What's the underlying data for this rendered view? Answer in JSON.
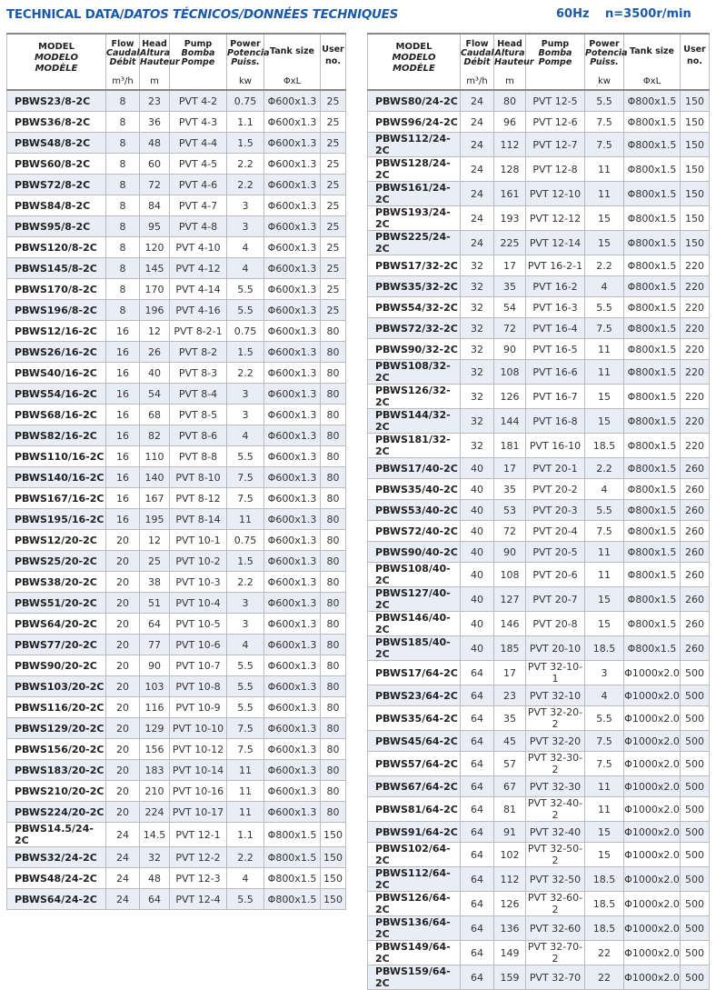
{
  "header": {
    "title_en": "TECHNICAL DATA/",
    "title_es_fr": "DATOS TÉCNICOS/DONNÉES TECHNIQUES",
    "frequency": "60Hz",
    "speed": "n=3500r/min"
  },
  "columns": {
    "model": [
      "MODEL",
      "MODELO",
      "MODÈLE"
    ],
    "flow": [
      "Flow",
      "Caudal",
      "Débit"
    ],
    "flow_unit": "m³/h",
    "head": [
      "Head",
      "Altura",
      "Hauteur"
    ],
    "head_unit": "m",
    "pump": [
      "Pump",
      "Bomba",
      "Pompe"
    ],
    "power": [
      "Power",
      "Potencia",
      "Puiss."
    ],
    "power_unit": "kw",
    "tank": "Tank size",
    "tank_unit": "ΦxL",
    "user": [
      "User",
      "no."
    ]
  },
  "left_table": [
    [
      "PBWS23/8-2C",
      "8",
      "23",
      "PVT 4-2",
      "0.75",
      "Φ600x1.3",
      "25"
    ],
    [
      "PBWS36/8-2C",
      "8",
      "36",
      "PVT 4-3",
      "1.1",
      "Φ600x1.3",
      "25"
    ],
    [
      "PBWS48/8-2C",
      "8",
      "48",
      "PVT 4-4",
      "1.5",
      "Φ600x1.3",
      "25"
    ],
    [
      "PBWS60/8-2C",
      "8",
      "60",
      "PVT 4-5",
      "2.2",
      "Φ600x1.3",
      "25"
    ],
    [
      "PBWS72/8-2C",
      "8",
      "72",
      "PVT 4-6",
      "2.2",
      "Φ600x1.3",
      "25"
    ],
    [
      "PBWS84/8-2C",
      "8",
      "84",
      "PVT 4-7",
      "3",
      "Φ600x1.3",
      "25"
    ],
    [
      "PBWS95/8-2C",
      "8",
      "95",
      "PVT 4-8",
      "3",
      "Φ600x1.3",
      "25"
    ],
    [
      "PBWS120/8-2C",
      "8",
      "120",
      "PVT 4-10",
      "4",
      "Φ600x1.3",
      "25"
    ],
    [
      "PBWS145/8-2C",
      "8",
      "145",
      "PVT 4-12",
      "4",
      "Φ600x1.3",
      "25"
    ],
    [
      "PBWS170/8-2C",
      "8",
      "170",
      "PVT 4-14",
      "5.5",
      "Φ600x1.3",
      "25"
    ],
    [
      "PBWS196/8-2C",
      "8",
      "196",
      "PVT 4-16",
      "5.5",
      "Φ600x1.3",
      "25"
    ],
    [
      "PBWS12/16-2C",
      "16",
      "12",
      "PVT 8-2-1",
      "0.75",
      "Φ600x1.3",
      "80"
    ],
    [
      "PBWS26/16-2C",
      "16",
      "26",
      "PVT 8-2",
      "1.5",
      "Φ600x1.3",
      "80"
    ],
    [
      "PBWS40/16-2C",
      "16",
      "40",
      "PVT 8-3",
      "2.2",
      "Φ600x1.3",
      "80"
    ],
    [
      "PBWS54/16-2C",
      "16",
      "54",
      "PVT 8-4",
      "3",
      "Φ600x1.3",
      "80"
    ],
    [
      "PBWS68/16-2C",
      "16",
      "68",
      "PVT 8-5",
      "3",
      "Φ600x1.3",
      "80"
    ],
    [
      "PBWS82/16-2C",
      "16",
      "82",
      "PVT 8-6",
      "4",
      "Φ600x1.3",
      "80"
    ],
    [
      "PBWS110/16-2C",
      "16",
      "110",
      "PVT 8-8",
      "5.5",
      "Φ600x1.3",
      "80"
    ],
    [
      "PBWS140/16-2C",
      "16",
      "140",
      "PVT 8-10",
      "7.5",
      "Φ600x1.3",
      "80"
    ],
    [
      "PBWS167/16-2C",
      "16",
      "167",
      "PVT 8-12",
      "7.5",
      "Φ600x1.3",
      "80"
    ],
    [
      "PBWS195/16-2C",
      "16",
      "195",
      "PVT 8-14",
      "11",
      "Φ600x1.3",
      "80"
    ],
    [
      "PBWS12/20-2C",
      "20",
      "12",
      "PVT 10-1",
      "0.75",
      "Φ600x1.3",
      "80"
    ],
    [
      "PBWS25/20-2C",
      "20",
      "25",
      "PVT 10-2",
      "1.5",
      "Φ600x1.3",
      "80"
    ],
    [
      "PBWS38/20-2C",
      "20",
      "38",
      "PVT 10-3",
      "2.2",
      "Φ600x1.3",
      "80"
    ],
    [
      "PBWS51/20-2C",
      "20",
      "51",
      "PVT 10-4",
      "3",
      "Φ600x1.3",
      "80"
    ],
    [
      "PBWS64/20-2C",
      "20",
      "64",
      "PVT 10-5",
      "3",
      "Φ600x1.3",
      "80"
    ],
    [
      "PBWS77/20-2C",
      "20",
      "77",
      "PVT 10-6",
      "4",
      "Φ600x1.3",
      "80"
    ],
    [
      "PBWS90/20-2C",
      "20",
      "90",
      "PVT 10-7",
      "5.5",
      "Φ600x1.3",
      "80"
    ],
    [
      "PBWS103/20-2C",
      "20",
      "103",
      "PVT 10-8",
      "5.5",
      "Φ600x1.3",
      "80"
    ],
    [
      "PBWS116/20-2C",
      "20",
      "116",
      "PVT 10-9",
      "5.5",
      "Φ600x1.3",
      "80"
    ],
    [
      "PBWS129/20-2C",
      "20",
      "129",
      "PVT 10-10",
      "7.5",
      "Φ600x1.3",
      "80"
    ],
    [
      "PBWS156/20-2C",
      "20",
      "156",
      "PVT 10-12",
      "7.5",
      "Φ600x1.3",
      "80"
    ],
    [
      "PBWS183/20-2C",
      "20",
      "183",
      "PVT 10-14",
      "11",
      "Φ600x1.3",
      "80"
    ],
    [
      "PBWS210/20-2C",
      "20",
      "210",
      "PVT 10-16",
      "11",
      "Φ600x1.3",
      "80"
    ],
    [
      "PBWS224/20-2C",
      "20",
      "224",
      "PVT 10-17",
      "11",
      "Φ600x1.3",
      "80"
    ],
    [
      "PBWS14.5/24-2C",
      "24",
      "14.5",
      "PVT 12-1",
      "1.1",
      "Φ800x1.5",
      "150"
    ],
    [
      "PBWS32/24-2C",
      "24",
      "32",
      "PVT 12-2",
      "2.2",
      "Φ800x1.5",
      "150"
    ],
    [
      "PBWS48/24-2C",
      "24",
      "48",
      "PVT 12-3",
      "4",
      "Φ800x1.5",
      "150"
    ],
    [
      "PBWS64/24-2C",
      "24",
      "64",
      "PVT 12-4",
      "5.5",
      "Φ800x1.5",
      "150"
    ]
  ],
  "right_table": [
    [
      "PBWS80/24-2C",
      "24",
      "80",
      "PVT 12-5",
      "5.5",
      "Φ800x1.5",
      "150"
    ],
    [
      "PBWS96/24-2C",
      "24",
      "96",
      "PVT 12-6",
      "7.5",
      "Φ800x1.5",
      "150"
    ],
    [
      "PBWS112/24-2C",
      "24",
      "112",
      "PVT 12-7",
      "7.5",
      "Φ800x1.5",
      "150"
    ],
    [
      "PBWS128/24-2C",
      "24",
      "128",
      "PVT 12-8",
      "11",
      "Φ800x1.5",
      "150"
    ],
    [
      "PBWS161/24-2C",
      "24",
      "161",
      "PVT 12-10",
      "11",
      "Φ800x1.5",
      "150"
    ],
    [
      "PBWS193/24-2C",
      "24",
      "193",
      "PVT 12-12",
      "15",
      "Φ800x1.5",
      "150"
    ],
    [
      "PBWS225/24-2C",
      "24",
      "225",
      "PVT 12-14",
      "15",
      "Φ800x1.5",
      "150"
    ],
    [
      "PBWS17/32-2C",
      "32",
      "17",
      "PVT 16-2-1",
      "2.2",
      "Φ800x1.5",
      "220"
    ],
    [
      "PBWS35/32-2C",
      "32",
      "35",
      "PVT 16-2",
      "4",
      "Φ800x1.5",
      "220"
    ],
    [
      "PBWS54/32-2C",
      "32",
      "54",
      "PVT 16-3",
      "5.5",
      "Φ800x1.5",
      "220"
    ],
    [
      "PBWS72/32-2C",
      "32",
      "72",
      "PVT 16-4",
      "7.5",
      "Φ800x1.5",
      "220"
    ],
    [
      "PBWS90/32-2C",
      "32",
      "90",
      "PVT 16-5",
      "11",
      "Φ800x1.5",
      "220"
    ],
    [
      "PBWS108/32-2C",
      "32",
      "108",
      "PVT 16-6",
      "11",
      "Φ800x1.5",
      "220"
    ],
    [
      "PBWS126/32-2C",
      "32",
      "126",
      "PVT 16-7",
      "15",
      "Φ800x1.5",
      "220"
    ],
    [
      "PBWS144/32-2C",
      "32",
      "144",
      "PVT 16-8",
      "15",
      "Φ800x1.5",
      "220"
    ],
    [
      "PBWS181/32-2C",
      "32",
      "181",
      "PVT 16-10",
      "18.5",
      "Φ800x1.5",
      "220"
    ],
    [
      "PBWS17/40-2C",
      "40",
      "17",
      "PVT 20-1",
      "2.2",
      "Φ800x1.5",
      "260"
    ],
    [
      "PBWS35/40-2C",
      "40",
      "35",
      "PVT 20-2",
      "4",
      "Φ800x1.5",
      "260"
    ],
    [
      "PBWS53/40-2C",
      "40",
      "53",
      "PVT 20-3",
      "5.5",
      "Φ800x1.5",
      "260"
    ],
    [
      "PBWS72/40-2C",
      "40",
      "72",
      "PVT 20-4",
      "7.5",
      "Φ800x1.5",
      "260"
    ],
    [
      "PBWS90/40-2C",
      "40",
      "90",
      "PVT 20-5",
      "11",
      "Φ800x1.5",
      "260"
    ],
    [
      "PBWS108/40-2C",
      "40",
      "108",
      "PVT 20-6",
      "11",
      "Φ800x1.5",
      "260"
    ],
    [
      "PBWS127/40-2C",
      "40",
      "127",
      "PVT 20-7",
      "15",
      "Φ800x1.5",
      "260"
    ],
    [
      "PBWS146/40-2C",
      "40",
      "146",
      "PVT 20-8",
      "15",
      "Φ800x1.5",
      "260"
    ],
    [
      "PBWS185/40-2C",
      "40",
      "185",
      "PVT 20-10",
      "18.5",
      "Φ800x1.5",
      "260"
    ],
    [
      "PBWS17/64-2C",
      "64",
      "17",
      "PVT 32-10-1",
      "3",
      "Φ1000x2.0",
      "500"
    ],
    [
      "PBWS23/64-2C",
      "64",
      "23",
      "PVT 32-10",
      "4",
      "Φ1000x2.0",
      "500"
    ],
    [
      "PBWS35/64-2C",
      "64",
      "35",
      "PVT 32-20-2",
      "5.5",
      "Φ1000x2.0",
      "500"
    ],
    [
      "PBWS45/64-2C",
      "64",
      "45",
      "PVT 32-20",
      "7.5",
      "Φ1000x2.0",
      "500"
    ],
    [
      "PBWS57/64-2C",
      "64",
      "57",
      "PVT 32-30-2",
      "7.5",
      "Φ1000x2.0",
      "500"
    ],
    [
      "PBWS67/64-2C",
      "64",
      "67",
      "PVT 32-30",
      "11",
      "Φ1000x2.0",
      "500"
    ],
    [
      "PBWS81/64-2C",
      "64",
      "81",
      "PVT 32-40-2",
      "11",
      "Φ1000x2.0",
      "500"
    ],
    [
      "PBWS91/64-2C",
      "64",
      "91",
      "PVT 32-40",
      "15",
      "Φ1000x2.0",
      "500"
    ],
    [
      "PBWS102/64-2C",
      "64",
      "102",
      "PVT 32-50-2",
      "15",
      "Φ1000x2.0",
      "500"
    ],
    [
      "PBWS112/64-2C",
      "64",
      "112",
      "PVT 32-50",
      "18.5",
      "Φ1000x2.0",
      "500"
    ],
    [
      "PBWS126/64-2C",
      "64",
      "126",
      "PVT 32-60-2",
      "18.5",
      "Φ1000x2.0",
      "500"
    ],
    [
      "PBWS136/64-2C",
      "64",
      "136",
      "PVT 32-60",
      "18.5",
      "Φ1000x2.0",
      "500"
    ],
    [
      "PBWS149/64-2C",
      "64",
      "149",
      "PVT 32-70-2",
      "22",
      "Φ1000x2.0",
      "500"
    ],
    [
      "PBWS159/64-2C",
      "64",
      "159",
      "PVT 32-70",
      "22",
      "Φ1000x2.0",
      "500"
    ]
  ]
}
